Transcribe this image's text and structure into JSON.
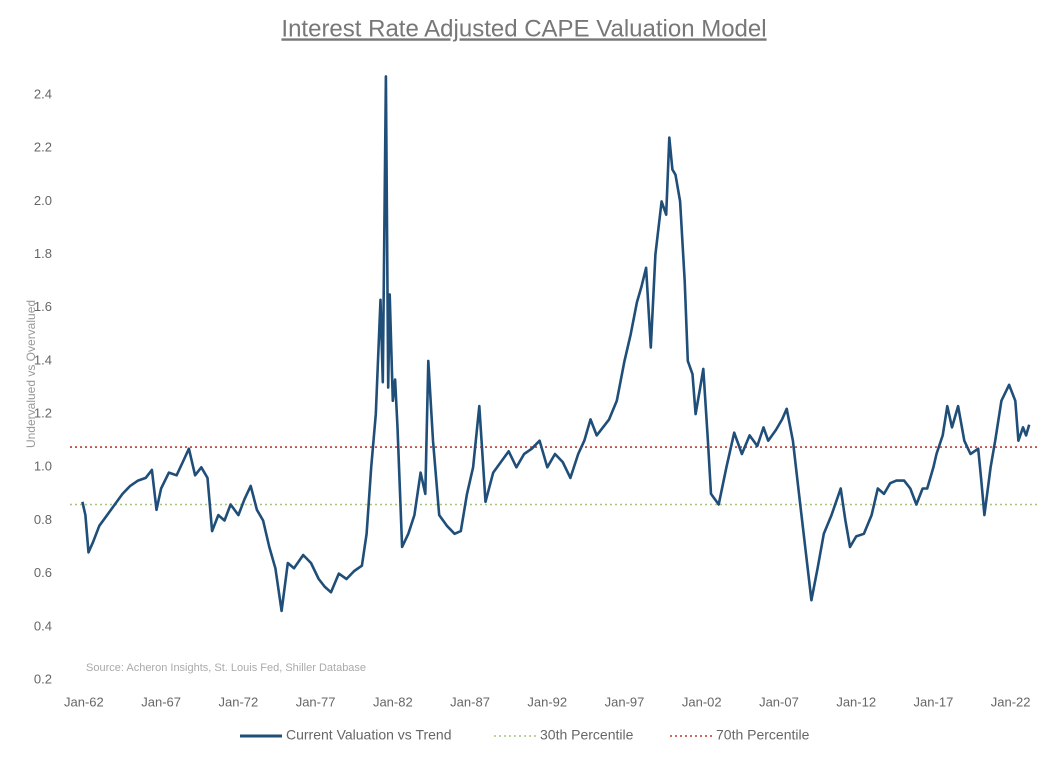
{
  "chart_data": {
    "type": "line",
    "title": "Interest Rate Adjusted CAPE Valuation Model",
    "y_label": "Undervalued vs Overvalued",
    "source": "Source: Acheron Insights, St. Louis Fed, Shiller Database",
    "xlim": [
      1961.1,
      2023.9
    ],
    "xticks": [
      {
        "value": 1962,
        "label": "Jan-62"
      },
      {
        "value": 1967,
        "label": "Jan-67"
      },
      {
        "value": 1972,
        "label": "Jan-72"
      },
      {
        "value": 1977,
        "label": "Jan-77"
      },
      {
        "value": 1982,
        "label": "Jan-82"
      },
      {
        "value": 1987,
        "label": "Jan-87"
      },
      {
        "value": 1992,
        "label": "Jan-92"
      },
      {
        "value": 1997,
        "label": "Jan-97"
      },
      {
        "value": 2002,
        "label": "Jan-02"
      },
      {
        "value": 2007,
        "label": "Jan-07"
      },
      {
        "value": 2012,
        "label": "Jan-12"
      },
      {
        "value": 2017,
        "label": "Jan-17"
      },
      {
        "value": 2022,
        "label": "Jan-22"
      }
    ],
    "ylim": [
      0.2,
      2.4
    ],
    "yticks": [
      0.2,
      0.4,
      0.6,
      0.8,
      {
        "value": 1.0,
        "label": "1.0"
      },
      1.2,
      1.4,
      1.6,
      1.8,
      {
        "value": 2.0,
        "label": "2.0"
      },
      2.2,
      2.4
    ],
    "grid": false,
    "legend": "bottom",
    "series": [
      {
        "name": "Current Valuation vs Trend",
        "color": "#1f4e79",
        "style": "solid",
        "x": [
          1961.9,
          1962.1,
          1962.3,
          1962.6,
          1963.0,
          1963.5,
          1964.0,
          1964.5,
          1965.0,
          1965.5,
          1966.0,
          1966.4,
          1966.7,
          1967.0,
          1967.5,
          1968.0,
          1968.4,
          1968.8,
          1969.2,
          1969.6,
          1970.0,
          1970.3,
          1970.7,
          1971.1,
          1971.5,
          1972.0,
          1972.4,
          1972.8,
          1973.2,
          1973.6,
          1974.0,
          1974.4,
          1974.8,
          1975.2,
          1975.6,
          1976.2,
          1976.7,
          1977.2,
          1977.6,
          1978.0,
          1978.5,
          1979.0,
          1979.5,
          1980.0,
          1980.3,
          1980.6,
          1980.9,
          1981.2,
          1981.35,
          1981.55,
          1981.7,
          1981.8,
          1982.0,
          1982.15,
          1982.3,
          1982.6,
          1983.0,
          1983.4,
          1983.8,
          1984.1,
          1984.3,
          1984.6,
          1985.0,
          1985.5,
          1986.0,
          1986.4,
          1986.8,
          1987.2,
          1987.6,
          1988.0,
          1988.5,
          1989.0,
          1989.5,
          1990.0,
          1990.5,
          1991.0,
          1991.5,
          1992.0,
          1992.5,
          1993.0,
          1993.5,
          1994.0,
          1994.4,
          1994.8,
          1995.2,
          1995.6,
          1996.0,
          1996.5,
          1997.0,
          1997.4,
          1997.8,
          1998.1,
          1998.4,
          1998.7,
          1999.0,
          1999.4,
          1999.7,
          1999.9,
          2000.1,
          2000.3,
          2000.6,
          2000.9,
          2001.1,
          2001.4,
          2001.6,
          2001.9,
          2002.1,
          2002.4,
          2002.6,
          2003.1,
          2003.6,
          2004.1,
          2004.6,
          2005.1,
          2005.6,
          2006.0,
          2006.3,
          2006.8,
          2007.2,
          2007.5,
          2007.9,
          2008.3,
          2008.7,
          2009.1,
          2009.5,
          2009.9,
          2010.4,
          2011.0,
          2011.3,
          2011.6,
          2012.0,
          2012.5,
          2013.0,
          2013.4,
          2013.8,
          2014.2,
          2014.6,
          2015.1,
          2015.5,
          2015.9,
          2016.3,
          2016.6,
          2017.0,
          2017.2,
          2017.6,
          2017.9,
          2018.2,
          2018.6,
          2019.0,
          2019.4,
          2019.9,
          2020.1,
          2020.3,
          2020.7,
          2021.0,
          2021.4,
          2021.9,
          2022.1,
          2022.3,
          2022.5,
          2022.8,
          2023.0,
          2023.2
        ],
        "values": [
          0.87,
          0.82,
          0.68,
          0.72,
          0.78,
          0.82,
          0.86,
          0.9,
          0.93,
          0.95,
          0.96,
          0.99,
          0.84,
          0.92,
          0.98,
          0.97,
          1.02,
          1.07,
          0.97,
          1.0,
          0.96,
          0.76,
          0.82,
          0.8,
          0.86,
          0.82,
          0.88,
          0.93,
          0.84,
          0.8,
          0.7,
          0.62,
          0.46,
          0.64,
          0.62,
          0.67,
          0.64,
          0.58,
          0.55,
          0.53,
          0.6,
          0.58,
          0.61,
          0.63,
          0.75,
          1.0,
          1.2,
          1.63,
          1.32,
          2.47,
          1.3,
          1.65,
          1.25,
          1.33,
          1.15,
          0.7,
          0.75,
          0.82,
          0.98,
          0.9,
          1.4,
          1.1,
          0.82,
          0.78,
          0.75,
          0.76,
          0.9,
          1.0,
          1.23,
          0.87,
          0.98,
          1.02,
          1.06,
          1.0,
          1.05,
          1.07,
          1.1,
          1.0,
          1.05,
          1.02,
          0.96,
          1.05,
          1.1,
          1.18,
          1.12,
          1.15,
          1.18,
          1.25,
          1.4,
          1.5,
          1.62,
          1.68,
          1.75,
          1.45,
          1.8,
          2.0,
          1.95,
          2.24,
          2.12,
          2.1,
          2.0,
          1.7,
          1.4,
          1.35,
          1.2,
          1.3,
          1.37,
          1.1,
          0.9,
          0.86,
          1.0,
          1.13,
          1.05,
          1.12,
          1.08,
          1.15,
          1.1,
          1.14,
          1.18,
          1.22,
          1.1,
          0.9,
          0.7,
          0.5,
          0.62,
          0.75,
          0.82,
          0.92,
          0.8,
          0.7,
          0.74,
          0.75,
          0.82,
          0.92,
          0.9,
          0.94,
          0.95,
          0.95,
          0.92,
          0.86,
          0.92,
          0.92,
          1.0,
          1.05,
          1.12,
          1.23,
          1.15,
          1.23,
          1.1,
          1.05,
          1.07,
          0.95,
          0.82,
          1.0,
          1.1,
          1.25,
          1.31,
          1.28,
          1.25,
          1.1,
          1.15,
          1.12,
          1.16
        ]
      },
      {
        "name": "30th Percentile",
        "color": "#a9c47f",
        "style": "dotted",
        "x": [
          1961.1,
          2023.9
        ],
        "values": [
          0.86,
          0.86
        ]
      },
      {
        "name": "70th Percentile",
        "color": "#c0392b",
        "style": "dotted",
        "x": [
          1961.1,
          2023.9
        ],
        "values": [
          1.076,
          1.076
        ]
      }
    ]
  }
}
